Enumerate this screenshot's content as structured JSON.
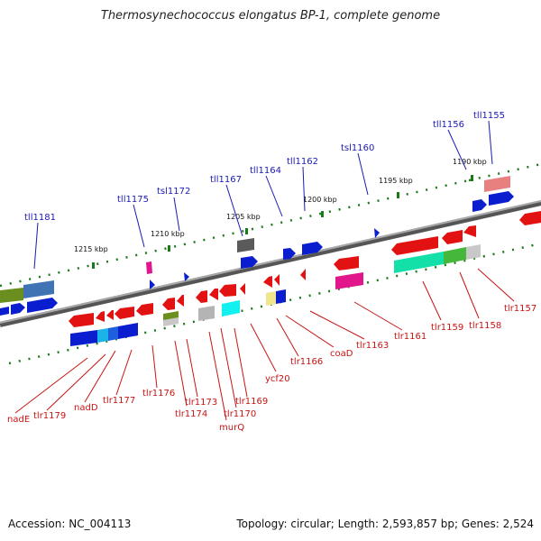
{
  "title": "Thermosynechococcus elongatus BP-1, complete genome",
  "footer": {
    "accession": "Accession: NC_004113",
    "topology": "Topology: circular; Length: 2,593,857 bp; Genes: 2,524"
  },
  "colors": {
    "top_label": "#1a1ab4",
    "bottom_label": "#c81414",
    "tick": "#1a7a1a",
    "backbone": "#7a7a7a"
  },
  "scale_labels": [
    "1215 kbp",
    "1210 kbp",
    "1205 kbp",
    "1200 kbp",
    "1195 kbp",
    "1190 kbp"
  ],
  "top_labels": [
    "tll1181",
    "tll1175",
    "tsl1172",
    "tll1167",
    "tll1164",
    "tll1162",
    "tsl1160",
    "tll1156",
    "tll1155"
  ],
  "bottom_labels": [
    "nadE",
    "tlr1179",
    "nadD",
    "tlr1177",
    "tlr1176",
    "tlr1174",
    "tlr1173",
    "murQ",
    "tlr1170",
    "tlr1169",
    "ycf20",
    "tlr1166",
    "coaD",
    "tlr1163",
    "tlr1161",
    "tlr1159",
    "tlr1158",
    "tlr1157"
  ]
}
